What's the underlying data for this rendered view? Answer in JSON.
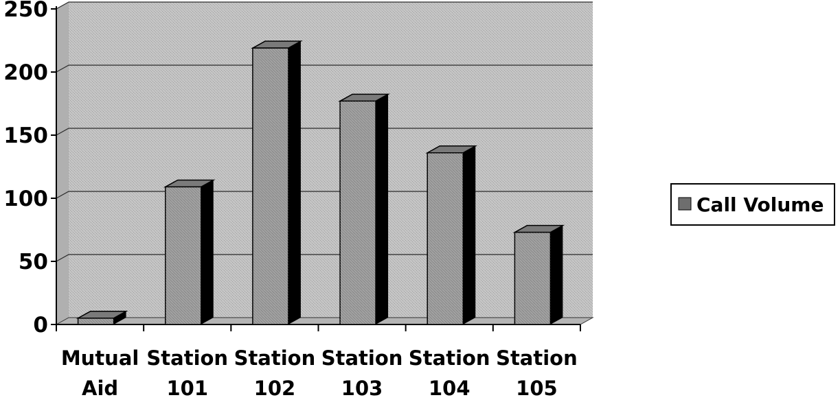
{
  "chart_data": {
    "type": "bar",
    "categories": [
      [
        "Mutual",
        "Aid"
      ],
      [
        "Station",
        "101"
      ],
      [
        "Station",
        "102"
      ],
      [
        "Station",
        "103"
      ],
      [
        "Station",
        "104"
      ],
      [
        "Station",
        "105"
      ]
    ],
    "series": [
      {
        "name": "Call Volume",
        "values": [
          5,
          109,
          219,
          177,
          136,
          73
        ]
      }
    ],
    "y_ticks": [
      "0",
      "50",
      "100",
      "150",
      "200",
      "250"
    ],
    "ylim": [
      0,
      250
    ],
    "grid": true,
    "three_d": true,
    "legend_position": "right",
    "colors": {
      "bar_face": "#9a9a9a",
      "bar_top": "#7a7a7a",
      "bar_side": "#000000",
      "back_wall": "#c2c2c2",
      "floor": "#b4b4b4",
      "gridline": "#2a2a2a",
      "legend_swatch": "#6e6e6e"
    }
  }
}
